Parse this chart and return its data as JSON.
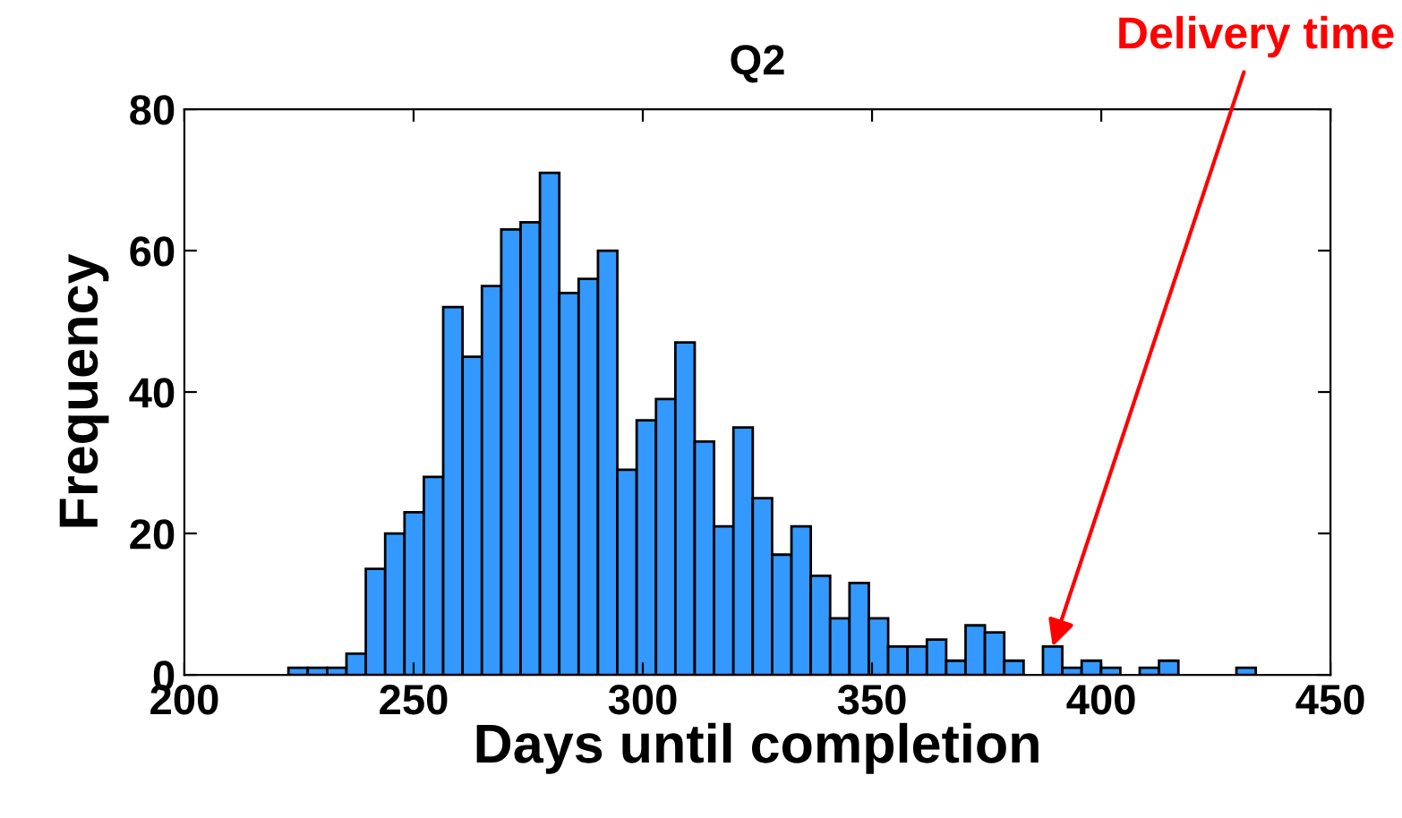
{
  "chart_data": {
    "type": "histogram",
    "title": "Q2",
    "xlabel": "Days until completion",
    "ylabel": "Frequency",
    "bins": [
      222.7,
      226.92,
      231.14,
      235.36,
      239.58,
      243.8,
      248.02,
      252.24,
      256.46,
      260.68,
      264.9,
      269.12,
      273.34,
      277.56,
      281.78,
      286.0,
      290.22,
      294.44,
      298.66,
      302.88,
      307.1,
      311.32,
      315.54,
      319.76,
      323.98,
      328.2,
      332.42,
      336.64,
      340.86,
      345.08,
      349.3,
      353.52,
      357.74,
      361.96,
      366.18,
      370.4,
      374.62,
      378.84,
      383.06,
      387.28,
      391.5,
      395.72,
      399.94,
      404.16,
      408.38,
      412.6,
      416.82,
      421.04,
      425.26,
      429.48,
      433.7
    ],
    "values": [
      1,
      1,
      1,
      3,
      15,
      20,
      23,
      28,
      52,
      45,
      55,
      63,
      64,
      71,
      54,
      56,
      60,
      29,
      36,
      39,
      47,
      33,
      21,
      35,
      25,
      17,
      21,
      14,
      8,
      13,
      8,
      4,
      4,
      5,
      2,
      7,
      6,
      2,
      0,
      4,
      1,
      2,
      1,
      0,
      1,
      2,
      0,
      0,
      0,
      1
    ],
    "color": "#3399ff",
    "xlim": [
      200,
      450
    ],
    "xticks": [
      200,
      250,
      300,
      350,
      400,
      450
    ],
    "ylim": [
      0,
      80
    ],
    "yticks": [
      0,
      20,
      40,
      60,
      80
    ],
    "grid": false,
    "legend": false,
    "annotations": [
      {
        "text": "Delivery time",
        "x": 389.4,
        "y": 4
      }
    ]
  }
}
